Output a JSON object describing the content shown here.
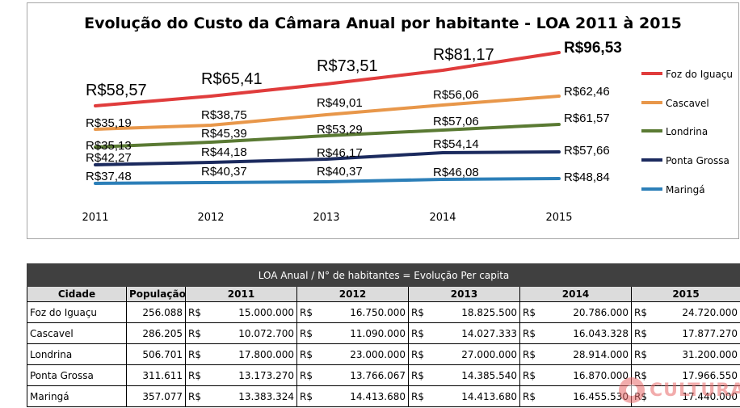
{
  "chart_data": {
    "type": "line",
    "title": "Evolução do Custo da Câmara Anual por habitante - LOA 2011 à 2015",
    "x": [
      "2011",
      "2012",
      "2013",
      "2014",
      "2015"
    ],
    "legend_position": "right",
    "series": [
      {
        "name": "Foz do Iguaçu",
        "color": "#e03c3c",
        "values": [
          58.57,
          65.41,
          73.51,
          81.17,
          96.53
        ],
        "labels": [
          "R$58,57",
          "R$65,41",
          "R$73,51",
          "R$81,17",
          "R$96,53"
        ]
      },
      {
        "name": "Cascavel",
        "color": "#e8974a",
        "values": [
          35.19,
          38.75,
          49.01,
          56.06,
          62.46
        ],
        "labels": [
          "R$35,19",
          "R$38,75",
          "R$49,01",
          "R$56,06",
          "R$62,46"
        ]
      },
      {
        "name": "Londrina",
        "color": "#5a7a33",
        "values": [
          35.13,
          45.39,
          53.29,
          57.06,
          61.57
        ],
        "labels": [
          "R$35,13",
          "R$45,39",
          "R$53,29",
          "R$57,06",
          "R$61,57"
        ]
      },
      {
        "name": "Ponta Grossa",
        "color": "#1b2a5e",
        "values": [
          42.27,
          44.18,
          46.17,
          54.14,
          57.66
        ],
        "labels": [
          "R$42,27",
          "R$44,18",
          "R$46,17",
          "R$54,14",
          "R$57,66"
        ]
      },
      {
        "name": "Maringá",
        "color": "#2c7fb8",
        "values": [
          37.48,
          40.37,
          40.37,
          46.08,
          48.84
        ],
        "labels": [
          "R$37,48",
          "R$40,37",
          "R$40,37",
          "R$46,08",
          "R$48,84"
        ]
      }
    ]
  },
  "table": {
    "title": "LOA Anual / N° de habitantes = Evolução Per capita",
    "headers": [
      "Cidade",
      "População",
      "2011",
      "2012",
      "2013",
      "2014",
      "2015"
    ],
    "currency": "R$",
    "rows": [
      {
        "cidade": "Foz do Iguaçu",
        "populacao": "256.088",
        "values": [
          "15.000.000",
          "16.750.000",
          "18.825.500",
          "20.786.000",
          "24.720.000"
        ]
      },
      {
        "cidade": "Cascavel",
        "populacao": "286.205",
        "values": [
          "10.072.700",
          "11.090.000",
          "14.027.333",
          "16.043.328",
          "17.877.270"
        ]
      },
      {
        "cidade": "Londrina",
        "populacao": "506.701",
        "values": [
          "17.800.000",
          "23.000.000",
          "27.000.000",
          "28.914.000",
          "31.200.000"
        ]
      },
      {
        "cidade": "Ponta Grossa",
        "populacao": "311.611",
        "values": [
          "13.173.270",
          "13.766.067",
          "14.385.540",
          "16.870.000",
          "17.966.550"
        ]
      },
      {
        "cidade": "Maringá",
        "populacao": "357.077",
        "values": [
          "13.383.324",
          "14.413.680",
          "14.413.680",
          "16.455.530",
          "17.440.000"
        ]
      }
    ]
  },
  "watermark": {
    "text": "CULTURA"
  }
}
